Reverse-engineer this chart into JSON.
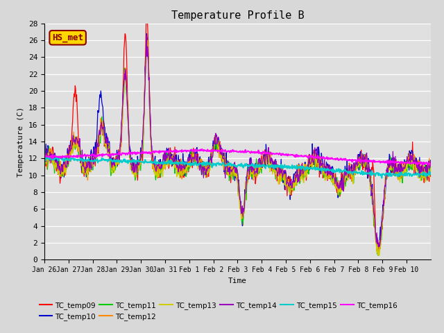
{
  "title": "Temperature Profile B",
  "xlabel": "Time",
  "ylabel": "Temperature (C)",
  "ylim": [
    0,
    28
  ],
  "yticks": [
    0,
    2,
    4,
    6,
    8,
    10,
    12,
    14,
    16,
    18,
    20,
    22,
    24,
    26,
    28
  ],
  "bg_color": "#e0e0e0",
  "annotation_text": "HS_met",
  "annotation_color": "#8B0000",
  "annotation_bg": "#FFD700",
  "series_colors": {
    "TC_temp09": "#FF0000",
    "TC_temp10": "#0000CC",
    "TC_temp11": "#00CC00",
    "TC_temp12": "#FF8800",
    "TC_temp13": "#CCCC00",
    "TC_temp14": "#9900BB",
    "TC_temp15": "#00CCCC",
    "TC_temp16": "#FF00FF"
  },
  "xtick_labels": [
    "Jan 26",
    "Jan 27",
    "Jan 28",
    "Jan 29",
    "Jan 30",
    "Jan 31",
    "Feb 1",
    "Feb 2",
    "Feb 3",
    "Feb 4",
    "Feb 5",
    "Feb 6",
    "Feb 7",
    "Feb 8",
    "Feb 9",
    "Feb 10"
  ],
  "font_family": "monospace",
  "fig_width": 6.4,
  "fig_height": 4.8,
  "dpi": 100
}
